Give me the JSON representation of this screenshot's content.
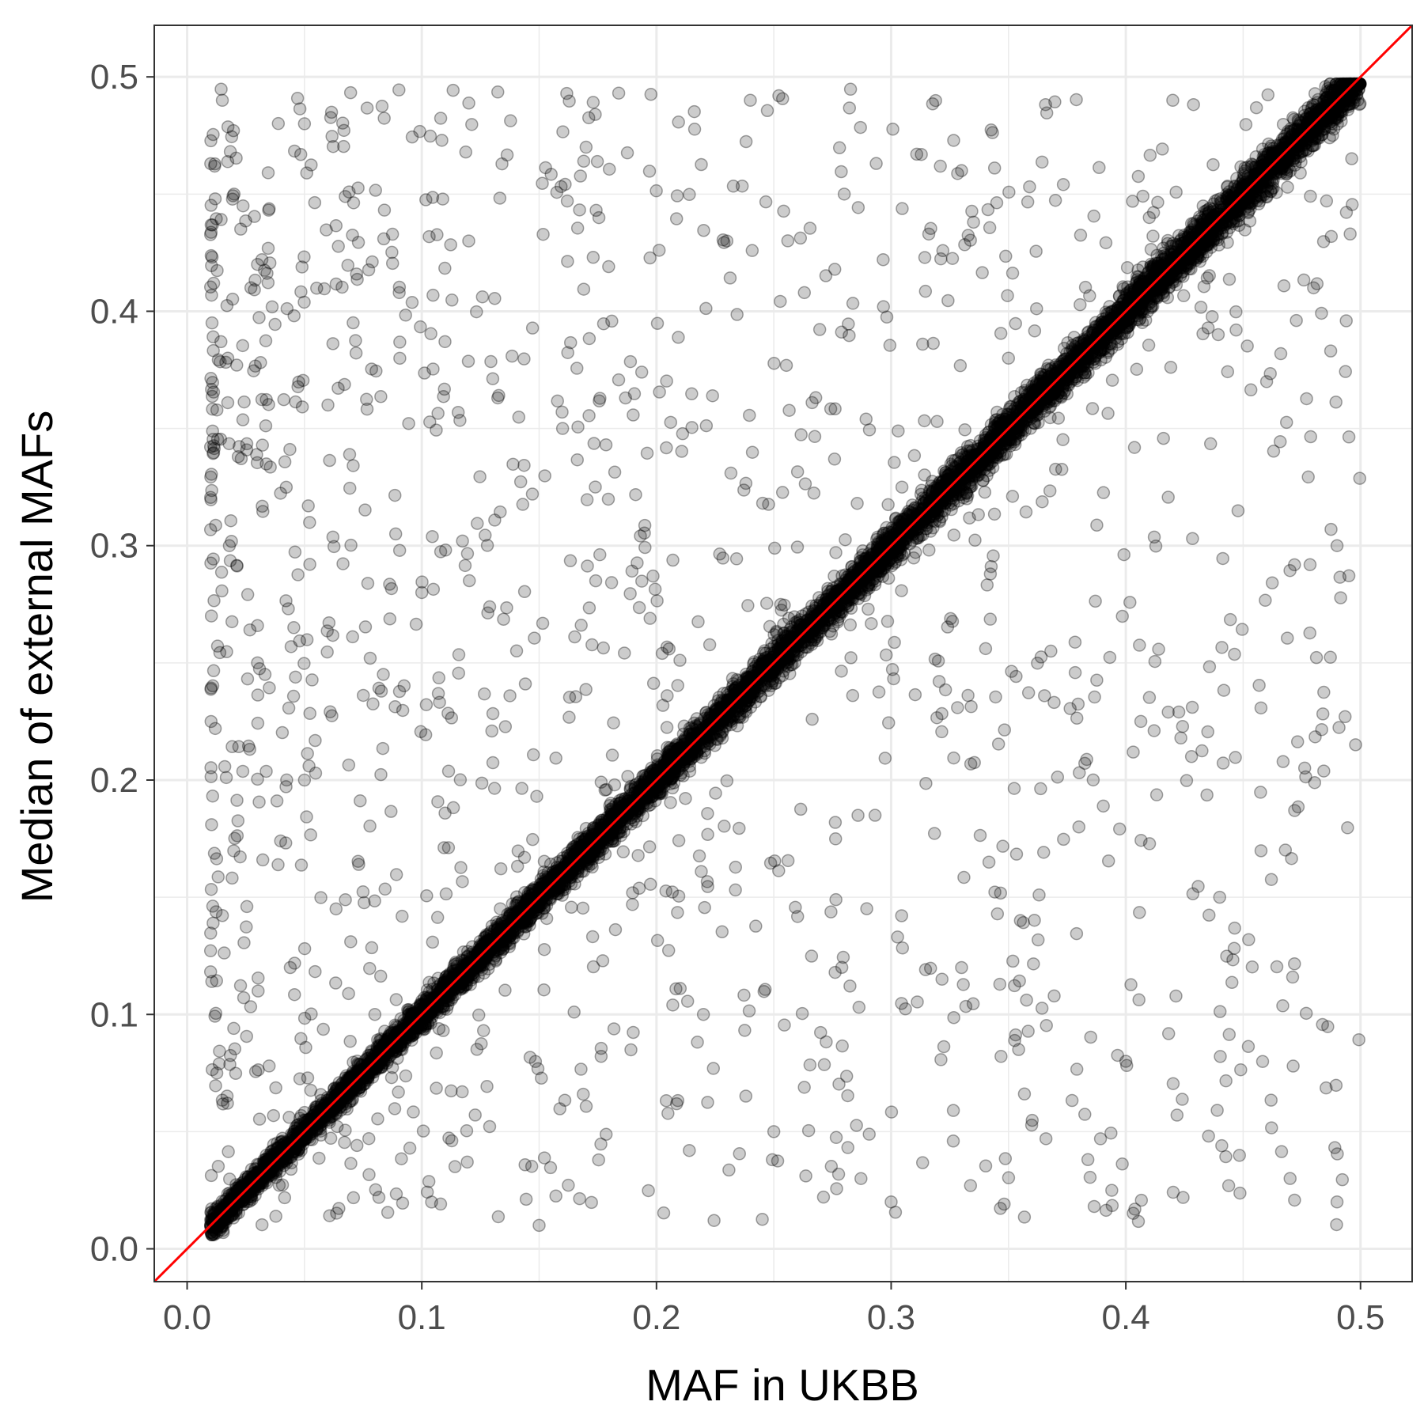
{
  "chart_data": {
    "type": "scatter",
    "title": "",
    "xlabel": "MAF in UKBB",
    "ylabel": "Median of external MAFs",
    "xlim": [
      -0.014,
      0.522
    ],
    "ylim": [
      -0.014,
      0.522
    ],
    "x_ticks": [
      0.0,
      0.1,
      0.2,
      0.3,
      0.4,
      0.5
    ],
    "y_ticks": [
      0.0,
      0.1,
      0.2,
      0.3,
      0.4,
      0.5
    ],
    "x_tick_labels": [
      "0.0",
      "0.1",
      "0.2",
      "0.3",
      "0.4",
      "0.5"
    ],
    "y_tick_labels": [
      "0.0",
      "0.1",
      "0.2",
      "0.3",
      "0.4",
      "0.5"
    ],
    "grid": true,
    "reference_line": {
      "type": "identity",
      "slope": 1,
      "intercept": 0,
      "color": "#ff0000"
    },
    "point_color": "#000000",
    "point_opacity": 0.2,
    "series": [
      {
        "points_note_values": "dense diagonal band y≈x from 0.01 to 0.5 plus scattered outliers",
        "x": [
          0.012,
          0.015,
          0.018,
          0.021,
          0.025,
          0.03,
          0.035,
          0.04,
          0.045,
          0.05,
          0.06,
          0.07,
          0.08,
          0.09,
          0.1,
          0.11,
          0.12,
          0.13,
          0.14,
          0.15,
          0.16,
          0.17,
          0.18,
          0.19,
          0.2,
          0.21,
          0.22,
          0.23,
          0.24,
          0.25,
          0.26,
          0.27,
          0.28,
          0.29,
          0.3,
          0.31,
          0.32,
          0.33,
          0.34,
          0.35,
          0.36,
          0.37,
          0.38,
          0.39,
          0.4,
          0.41,
          0.42,
          0.43,
          0.44,
          0.45,
          0.46,
          0.47,
          0.48,
          0.49,
          0.498,
          0.015,
          0.02,
          0.018,
          0.03,
          0.05,
          0.05,
          0.08,
          0.12,
          0.17,
          0.24,
          0.33,
          0.41,
          0.46,
          0.49,
          0.03,
          0.06,
          0.1,
          0.16,
          0.23,
          0.28,
          0.35,
          0.42,
          0.48,
          0.25,
          0.3,
          0.38,
          0.44,
          0.47,
          0.49,
          0.15,
          0.22,
          0.33,
          0.4
        ],
        "y": [
          0.012,
          0.015,
          0.018,
          0.021,
          0.025,
          0.03,
          0.035,
          0.04,
          0.045,
          0.05,
          0.06,
          0.07,
          0.08,
          0.09,
          0.1,
          0.11,
          0.12,
          0.13,
          0.14,
          0.15,
          0.16,
          0.17,
          0.18,
          0.19,
          0.2,
          0.21,
          0.22,
          0.23,
          0.24,
          0.25,
          0.26,
          0.27,
          0.28,
          0.29,
          0.3,
          0.31,
          0.32,
          0.33,
          0.34,
          0.35,
          0.36,
          0.37,
          0.38,
          0.39,
          0.4,
          0.41,
          0.42,
          0.43,
          0.44,
          0.45,
          0.46,
          0.47,
          0.48,
          0.49,
          0.495,
          0.49,
          0.45,
          0.3,
          0.42,
          0.48,
          0.2,
          0.1,
          0.43,
          0.47,
          0.49,
          0.46,
          0.44,
          0.37,
          0.3,
          0.25,
          0.36,
          0.28,
          0.35,
          0.43,
          0.45,
          0.38,
          0.49,
          0.41,
          0.05,
          0.02,
          0.18,
          0.15,
          0.03,
          0.02,
          0.01,
          0.1,
          0.12,
          0.08
        ]
      }
    ]
  }
}
